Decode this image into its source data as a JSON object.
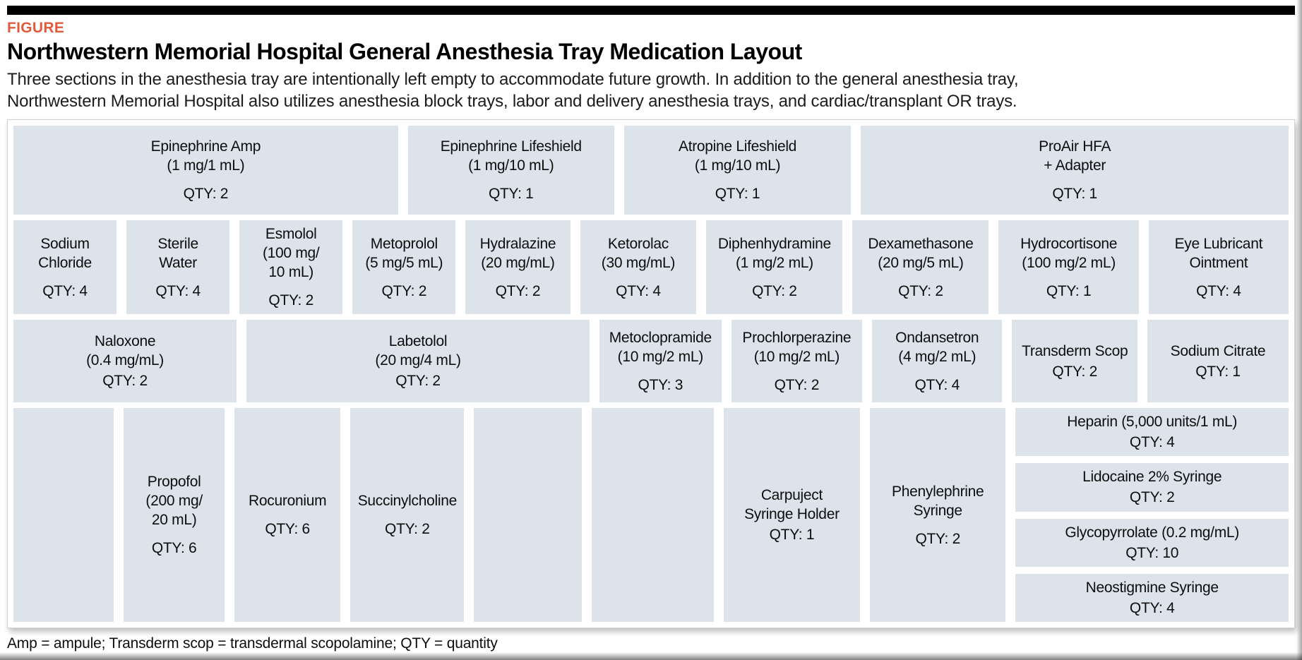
{
  "header": {
    "kicker": "FIGURE",
    "title": "Northwestern Memorial Hospital General Anesthesia Tray Medication Layout",
    "caption": "Three sections in the anesthesia tray are intentionally left empty to accommodate future growth. In addition to the general anesthesia tray, Northwestern Memorial Hospital also utilizes anesthesia block trays, labor and delivery anesthesia trays, and cardiac/transplant OR trays."
  },
  "colors": {
    "accent_kicker": "#e25a3c",
    "cell_bg": "#dce3ea",
    "rule": "#000000"
  },
  "tray": {
    "rows": [
      {
        "cells": [
          {
            "label": "Epinephrine Amp\n(1 mg/1 mL)",
            "qty": "QTY: 2"
          },
          {
            "label": "Epinephrine Lifeshield\n(1 mg/10 mL)",
            "qty": "QTY: 1"
          },
          {
            "label": "Atropine Lifeshield\n(1 mg/10 mL)",
            "qty": "QTY: 1"
          },
          {
            "label": "ProAir HFA\n+ Adapter",
            "qty": "QTY: 1"
          }
        ]
      },
      {
        "cells": [
          {
            "label": "Sodium\nChloride",
            "qty": "QTY: 4"
          },
          {
            "label": "Sterile\nWater",
            "qty": "QTY: 4"
          },
          {
            "label": "Esmolol\n(100 mg/\n10 mL)",
            "qty": "QTY: 2"
          },
          {
            "label": "Metoprolol\n(5 mg/5 mL)",
            "qty": "QTY: 2"
          },
          {
            "label": "Hydralazine\n(20 mg/mL)",
            "qty": "QTY: 2"
          },
          {
            "label": "Ketorolac\n(30 mg/mL)",
            "qty": "QTY: 4"
          },
          {
            "label": "Diphenhydramine\n(1 mg/2 mL)",
            "qty": "QTY: 2"
          },
          {
            "label": "Dexamethasone\n(20 mg/5 mL)",
            "qty": "QTY: 2"
          },
          {
            "label": "Hydrocortisone\n(100 mg/2 mL)",
            "qty": "QTY: 1"
          },
          {
            "label": "Eye Lubricant\nOintment",
            "qty": "QTY: 4"
          }
        ]
      },
      {
        "cells": [
          {
            "label": "Naloxone\n(0.4 mg/mL)",
            "qty": "QTY: 2"
          },
          {
            "label": "Labetolol\n(20 mg/4 mL)",
            "qty": "QTY: 2"
          },
          {
            "label": "Metoclopramide\n(10 mg/2 mL)",
            "qty": "QTY: 3"
          },
          {
            "label": "Prochlorperazine\n(10 mg/2 mL)",
            "qty": "QTY: 2"
          },
          {
            "label": "Ondansetron\n(4 mg/2 mL)",
            "qty": "QTY: 4"
          },
          {
            "label": "Transderm Scop",
            "qty": "QTY: 2"
          },
          {
            "label": "Sodium Citrate",
            "qty": "QTY: 1"
          }
        ]
      },
      {
        "cells": [
          {
            "label": "",
            "qty": ""
          },
          {
            "label": "Propofol\n(200 mg/\n20 mL)",
            "qty": "QTY: 6"
          },
          {
            "label": "Rocuronium",
            "qty": "QTY: 6"
          },
          {
            "label": "Succinylcholine",
            "qty": "QTY: 2"
          },
          {
            "label": "",
            "qty": ""
          },
          {
            "label": "",
            "qty": ""
          },
          {
            "label": "Carpuject\nSyringe Holder",
            "qty": "QTY: 1"
          },
          {
            "label": "Phenylephrine\nSyringe",
            "qty": "QTY: 2"
          },
          {
            "stack": [
              {
                "label": "Heparin (5,000 units/1 mL)",
                "qty": "QTY: 4"
              },
              {
                "label": "Lidocaine 2% Syringe",
                "qty": "QTY: 2"
              },
              {
                "label": "Glycopyrrolate (0.2 mg/mL)",
                "qty": "QTY: 10"
              },
              {
                "label": "Neostigmine Syringe",
                "qty": "QTY: 4"
              }
            ]
          }
        ]
      }
    ]
  },
  "footnote": "Amp = ampule; Transderm scop = transdermal scopolamine; QTY = quantity"
}
